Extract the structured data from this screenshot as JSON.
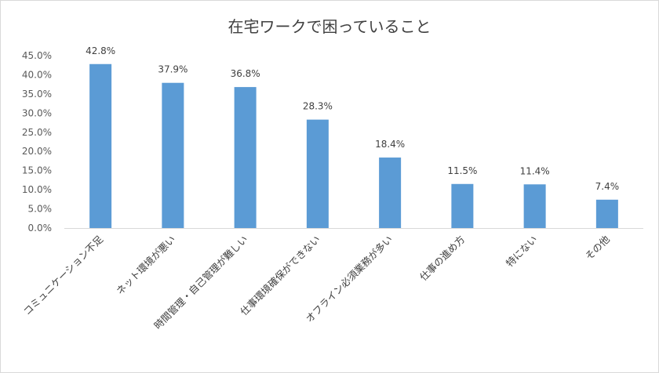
{
  "chart_data": {
    "type": "bar",
    "title": "在宅ワークで困っていること",
    "categories": [
      "コミュニケーション不足",
      "ネット環境が悪い",
      "時間管理・自己管理が難しい",
      "仕事環境確保ができない",
      "オフライン必須業務が多い",
      "仕事の進め方",
      "特にない",
      "その他"
    ],
    "values": [
      42.8,
      37.9,
      36.8,
      28.3,
      18.4,
      11.5,
      11.4,
      7.4
    ],
    "data_labels": [
      "42.8%",
      "37.9%",
      "36.8%",
      "28.3%",
      "18.4%",
      "11.5%",
      "11.4%",
      "7.4%"
    ],
    "y_ticks": [
      "0.0%",
      "5.0%",
      "10.0%",
      "15.0%",
      "20.0%",
      "25.0%",
      "30.0%",
      "35.0%",
      "40.0%",
      "45.0%"
    ],
    "ylim": [
      0,
      45
    ],
    "grid": false,
    "legend": "none",
    "bar_color": "#5b9bd5",
    "axis_color": "#d9d9d9"
  }
}
